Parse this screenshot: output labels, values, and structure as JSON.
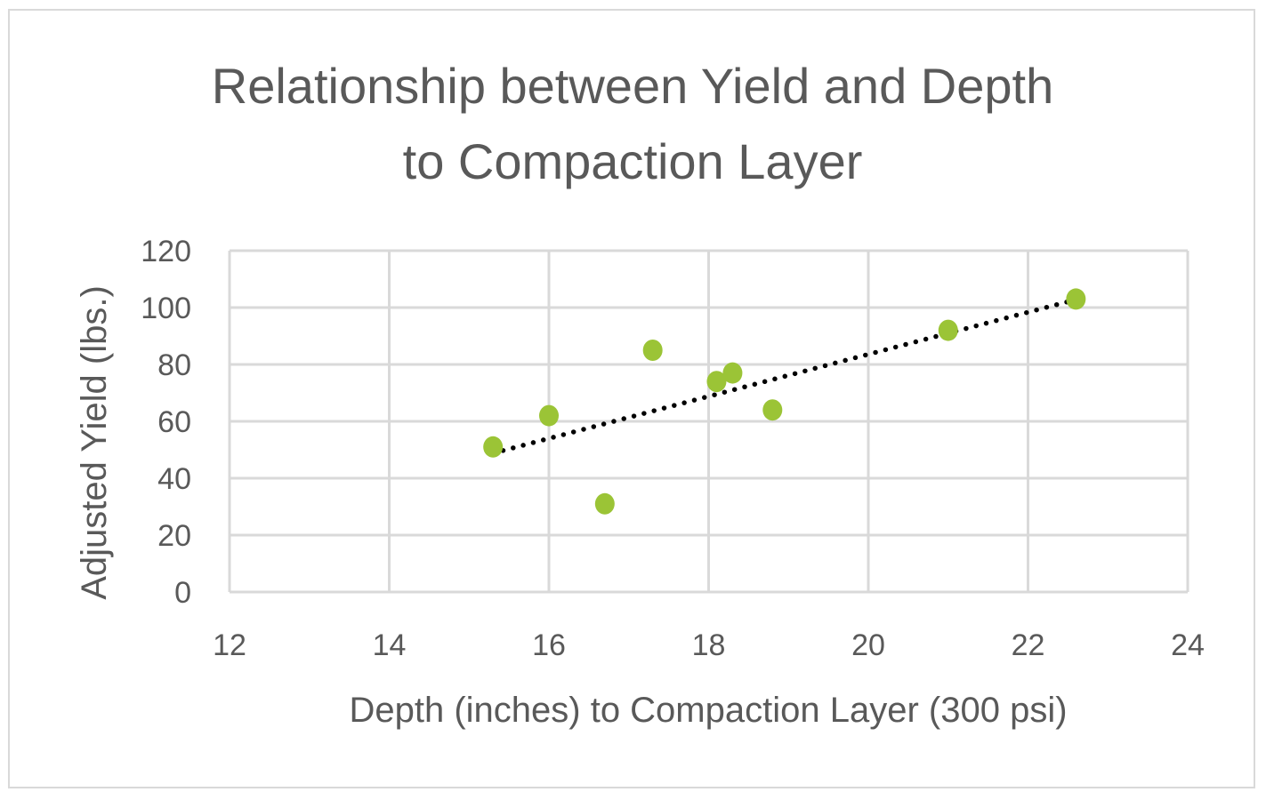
{
  "chart_data": {
    "type": "scatter",
    "title": [
      "Relationship between Yield and Depth",
      "to Compaction Layer"
    ],
    "xlabel": "Depth (inches) to Compaction Layer (300 psi)",
    "ylabel": "Adjusted Yield (lbs.)",
    "xlim": [
      12,
      24
    ],
    "ylim": [
      0,
      120
    ],
    "xticks": [
      12,
      14,
      16,
      18,
      20,
      22,
      24
    ],
    "yticks": [
      0,
      20,
      40,
      60,
      80,
      100,
      120
    ],
    "grid": true,
    "legend": "none",
    "point_color": "#9bc436",
    "points": [
      {
        "x": 15.3,
        "y": 51
      },
      {
        "x": 16.0,
        "y": 62
      },
      {
        "x": 16.7,
        "y": 31
      },
      {
        "x": 17.3,
        "y": 85
      },
      {
        "x": 18.1,
        "y": 74
      },
      {
        "x": 18.3,
        "y": 77
      },
      {
        "x": 18.8,
        "y": 64
      },
      {
        "x": 21.0,
        "y": 92
      },
      {
        "x": 22.6,
        "y": 103
      }
    ],
    "trendline": {
      "type": "linear",
      "style": "dotted",
      "color": "#000000",
      "x": [
        15.3,
        22.6
      ],
      "y": [
        48.8,
        102.8
      ]
    }
  }
}
